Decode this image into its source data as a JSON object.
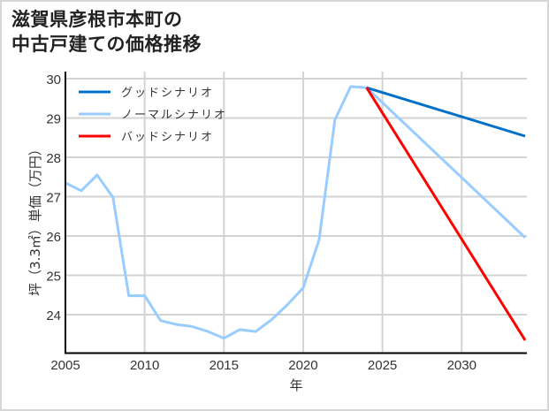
{
  "title": {
    "line1": "滋賀県彦根市本町の",
    "line2": "中古戸建ての価格推移"
  },
  "colors": {
    "good": "#0070c8",
    "normal": "#99ccff",
    "bad": "#ff0000",
    "grid": "#d3d3d3",
    "axis": "#000000",
    "frame": "#d6d6d6"
  },
  "chart_data": {
    "type": "line",
    "title": "滋賀県彦根市本町の中古戸建ての価格推移",
    "xlabel": "年",
    "ylabel": "坪（3.3㎡）単価（万円）",
    "xlim": [
      2005,
      2034
    ],
    "ylim": [
      23.0,
      30.0
    ],
    "xticks": [
      2005,
      2010,
      2015,
      2020,
      2025,
      2030
    ],
    "yticks": [
      24,
      25,
      26,
      27,
      28,
      29,
      30
    ],
    "grid": true,
    "legend_position": "upper left",
    "legend": [
      "グッドシナリオ",
      "ノーマルシナリオ",
      "バッドシナリオ"
    ],
    "series": [
      {
        "name": "ノーマルシナリオ",
        "color": "#99ccff",
        "x": [
          2005,
          2006,
          2007,
          2008,
          2009,
          2010,
          2011,
          2012,
          2013,
          2014,
          2015,
          2016,
          2017,
          2018,
          2019,
          2020,
          2021,
          2022,
          2023,
          2024,
          2034
        ],
        "values": [
          27.35,
          27.15,
          27.55,
          26.98,
          24.48,
          24.48,
          23.85,
          23.75,
          23.7,
          23.57,
          23.4,
          23.62,
          23.57,
          23.87,
          24.25,
          24.68,
          25.9,
          28.95,
          29.8,
          29.77,
          25.96
        ]
      },
      {
        "name": "グッドシナリオ",
        "color": "#0070c8",
        "x": [
          2024,
          2034
        ],
        "values": [
          29.77,
          28.54
        ]
      },
      {
        "name": "バッドシナリオ",
        "color": "#ff0000",
        "x": [
          2024,
          2034
        ],
        "values": [
          29.77,
          23.35
        ]
      }
    ]
  }
}
